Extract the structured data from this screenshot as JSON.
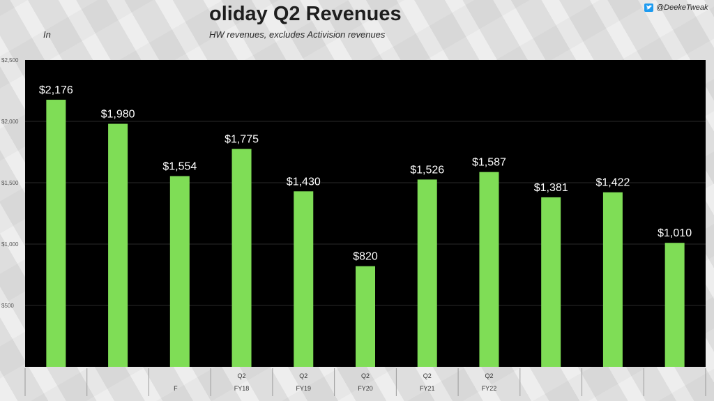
{
  "header": {
    "title": "oliday Q2 Revenues",
    "subtitle_left": "In",
    "subtitle": "HW revenues, excludes Activision revenues",
    "handle": "@DeekeTweak"
  },
  "colors": {
    "bar": "#7fdd56",
    "plot_bg": "#000000",
    "label": "#ffffff",
    "grid": "#2a2a2a"
  },
  "chart_data": {
    "type": "bar",
    "title": "oliday Q2 Revenues",
    "values": [
      2176,
      1980,
      1554,
      1775,
      1430,
      820,
      1526,
      1587,
      1381,
      1422,
      1010
    ],
    "value_labels": [
      "$2,176",
      "$1,980",
      "$1,554",
      "$1,775",
      "$1,430",
      "$820",
      "$1,526",
      "$1,587",
      "$1,381",
      "$1,422",
      "$1,010"
    ],
    "x_top_labels": [
      "",
      "",
      "",
      "Q2",
      "Q2",
      "Q2",
      "Q2",
      "Q2",
      "",
      "",
      ""
    ],
    "x_bottom_labels": [
      "",
      "",
      "F",
      "FY18",
      "FY19",
      "FY20",
      "FY21",
      "FY22",
      "",
      "",
      ""
    ],
    "y_ticks": [
      500,
      1000,
      1500,
      2000,
      2500
    ],
    "y_tick_labels": [
      "$500",
      "$1,000",
      "$1,500",
      "$2,000",
      "$2,500"
    ],
    "ylim": [
      0,
      2500
    ],
    "grid": true
  }
}
